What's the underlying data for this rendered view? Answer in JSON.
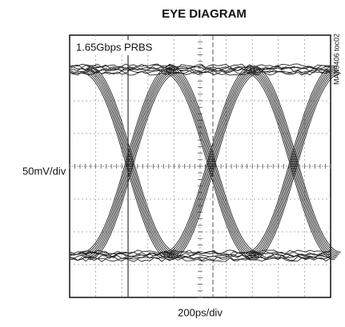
{
  "title": "EYE DIAGRAM",
  "annotation": "1.65Gbps PRBS",
  "y_label": "50mV/div",
  "x_label": "200ps/div",
  "side_label": "MAX9406 toc02"
}
